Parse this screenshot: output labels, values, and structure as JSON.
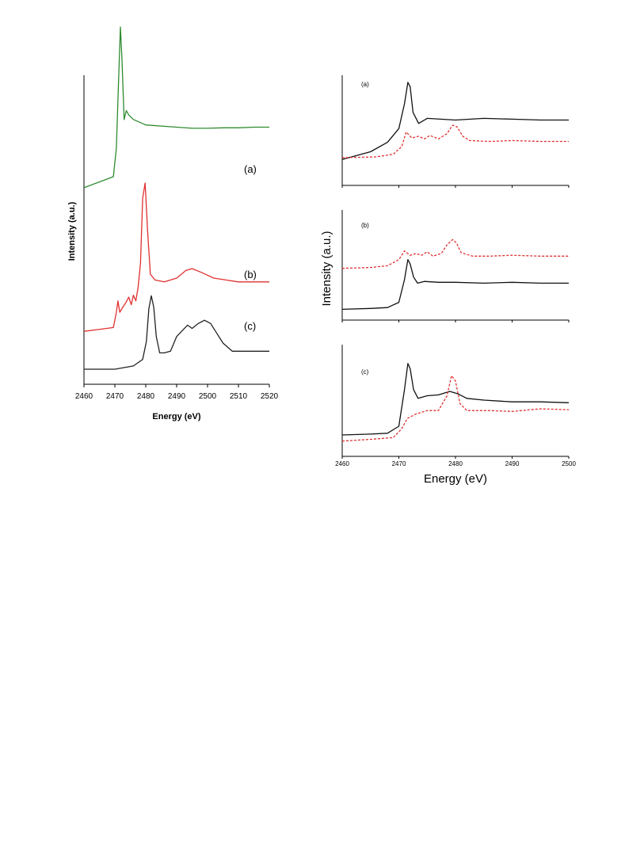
{
  "chart_data": [
    {
      "type": "line",
      "xlabel": "Energy (eV)",
      "ylabel": "Intensity (a.u.)",
      "xlim": [
        2460,
        2520
      ],
      "xticks": [
        "2460",
        "2470",
        "2480",
        "2490",
        "2500",
        "2510",
        "2520"
      ],
      "y_ticks_shown": false,
      "series": [
        {
          "name": "(a)",
          "color": "#2e8b2e",
          "x": [
            2460,
            2469.5,
            2470.5,
            2471.3,
            2471.8,
            2472.3,
            2473.0,
            2473.7,
            2474.5,
            2476,
            2480,
            2485,
            2490,
            2495,
            2500,
            2505,
            2510,
            2515,
            2520
          ],
          "y": [
            0.27,
            0.32,
            0.45,
            0.8,
            1.0,
            0.85,
            0.58,
            0.62,
            0.6,
            0.58,
            0.555,
            0.55,
            0.545,
            0.54,
            0.54,
            0.542,
            0.542,
            0.545,
            0.545
          ]
        },
        {
          "name": "(b)",
          "color": "#e03030",
          "x": [
            2460,
            2469.5,
            2470.5,
            2471.0,
            2471.6,
            2472.3,
            2473.5,
            2474.5,
            2475.3,
            2476.0,
            2476.8,
            2477.5,
            2478.3,
            2479.0,
            2479.8,
            2480.6,
            2481.5,
            2483,
            2486,
            2490,
            2493,
            2495,
            2498,
            2502,
            2506,
            2510,
            2515,
            2520
          ],
          "y": [
            0.02,
            0.04,
            0.12,
            0.18,
            0.12,
            0.14,
            0.17,
            0.2,
            0.16,
            0.21,
            0.18,
            0.25,
            0.38,
            0.72,
            0.8,
            0.55,
            0.32,
            0.29,
            0.28,
            0.3,
            0.34,
            0.35,
            0.33,
            0.3,
            0.29,
            0.28,
            0.28,
            0.28
          ]
        },
        {
          "name": "(c)",
          "color": "#222222",
          "x": [
            2460,
            2470,
            2476,
            2479,
            2480.2,
            2481.0,
            2481.8,
            2482.6,
            2483.4,
            2484.5,
            2486,
            2488,
            2490,
            2492,
            2493.5,
            2495,
            2497,
            2499,
            2501,
            2503,
            2505,
            2508,
            2512,
            2516,
            2520
          ],
          "y": [
            0.0,
            0.0,
            0.02,
            0.06,
            0.17,
            0.37,
            0.45,
            0.38,
            0.2,
            0.1,
            0.1,
            0.11,
            0.2,
            0.24,
            0.27,
            0.25,
            0.28,
            0.3,
            0.28,
            0.22,
            0.16,
            0.11,
            0.11,
            0.11,
            0.11
          ]
        }
      ]
    },
    {
      "type": "line",
      "panel": "(a)",
      "xlim": [
        2460,
        2500
      ],
      "xticks_shown": false,
      "series": [
        {
          "color": "#111111",
          "style": "solid",
          "x": [
            2460,
            2465,
            2468,
            2470,
            2471,
            2471.6,
            2472,
            2472.5,
            2473.5,
            2475,
            2480,
            2485,
            2490,
            2495,
            2500
          ],
          "y": [
            0.1,
            0.19,
            0.3,
            0.46,
            0.75,
            1.0,
            0.95,
            0.65,
            0.52,
            0.58,
            0.56,
            0.58,
            0.57,
            0.56,
            0.56
          ]
        },
        {
          "color": "#e03030",
          "style": "dashed",
          "x": [
            2460,
            2466,
            2469,
            2470.5,
            2471.3,
            2472.3,
            2473.5,
            2474.5,
            2475.5,
            2477,
            2478.5,
            2479.5,
            2480.3,
            2481.3,
            2482.5,
            2486,
            2490,
            2495,
            2500
          ],
          "y": [
            0.12,
            0.13,
            0.16,
            0.25,
            0.42,
            0.35,
            0.37,
            0.34,
            0.38,
            0.34,
            0.4,
            0.5,
            0.48,
            0.37,
            0.32,
            0.31,
            0.32,
            0.31,
            0.31
          ]
        }
      ]
    },
    {
      "type": "line",
      "panel": "(b)",
      "xlim": [
        2460,
        2500
      ],
      "xticks_shown": false,
      "series": [
        {
          "color": "#111111",
          "style": "solid",
          "x": [
            2460,
            2465,
            2468,
            2470,
            2471,
            2471.6,
            2472,
            2472.6,
            2473.3,
            2474.5,
            2477,
            2480,
            2485,
            2490,
            2495,
            2500
          ],
          "y": [
            0.06,
            0.07,
            0.08,
            0.14,
            0.4,
            0.63,
            0.58,
            0.43,
            0.36,
            0.38,
            0.37,
            0.37,
            0.36,
            0.37,
            0.36,
            0.36
          ]
        },
        {
          "color": "#e03030",
          "style": "dashed",
          "x": [
            2460,
            2465,
            2468,
            2470,
            2471,
            2472,
            2473,
            2474,
            2475,
            2476,
            2477.5,
            2478.5,
            2479.5,
            2480.2,
            2481,
            2483,
            2486,
            2490,
            2495,
            2500
          ],
          "y": [
            0.53,
            0.54,
            0.56,
            0.63,
            0.73,
            0.68,
            0.7,
            0.68,
            0.72,
            0.67,
            0.7,
            0.8,
            0.86,
            0.82,
            0.71,
            0.67,
            0.67,
            0.68,
            0.67,
            0.67
          ]
        }
      ]
    },
    {
      "type": "line",
      "panel": "(c)",
      "xlim": [
        2460,
        2500
      ],
      "xticks": [
        "2460",
        "2470",
        "2480",
        "2490",
        "2500"
      ],
      "xlabel": "Energy (eV)",
      "series": [
        {
          "color": "#111111",
          "style": "solid",
          "x": [
            2460,
            2465,
            2468,
            2470,
            2471,
            2471.6,
            2472,
            2472.6,
            2473.4,
            2475,
            2477,
            2479,
            2480.5,
            2482,
            2485,
            2490,
            2495,
            2500
          ],
          "y": [
            0.1,
            0.11,
            0.12,
            0.2,
            0.62,
            0.92,
            0.86,
            0.62,
            0.52,
            0.55,
            0.56,
            0.6,
            0.57,
            0.52,
            0.5,
            0.48,
            0.48,
            0.47
          ],
          "note": ""
        },
        {
          "color": "#e03030",
          "style": "dashed",
          "x": [
            2460,
            2465,
            2469,
            2470.5,
            2471.5,
            2473,
            2475,
            2477,
            2478.5,
            2479.3,
            2480,
            2480.8,
            2482,
            2486,
            2490,
            2495,
            2500
          ],
          "y": [
            0.03,
            0.05,
            0.07,
            0.17,
            0.29,
            0.34,
            0.38,
            0.38,
            0.55,
            0.78,
            0.72,
            0.46,
            0.38,
            0.38,
            0.37,
            0.4,
            0.39
          ]
        }
      ]
    }
  ],
  "text": {
    "left_ylabel": "Intensity (a.u.)",
    "left_xlabel": "Energy (eV)",
    "label_a": "(a)",
    "label_b": "(b)",
    "label_c": "(c)",
    "right_ylabel": "Intensity (a.u.)",
    "right_xlabel": "Energy (eV)",
    "panel_a": "(a)",
    "panel_b": "(b)",
    "panel_c": "(c)"
  }
}
